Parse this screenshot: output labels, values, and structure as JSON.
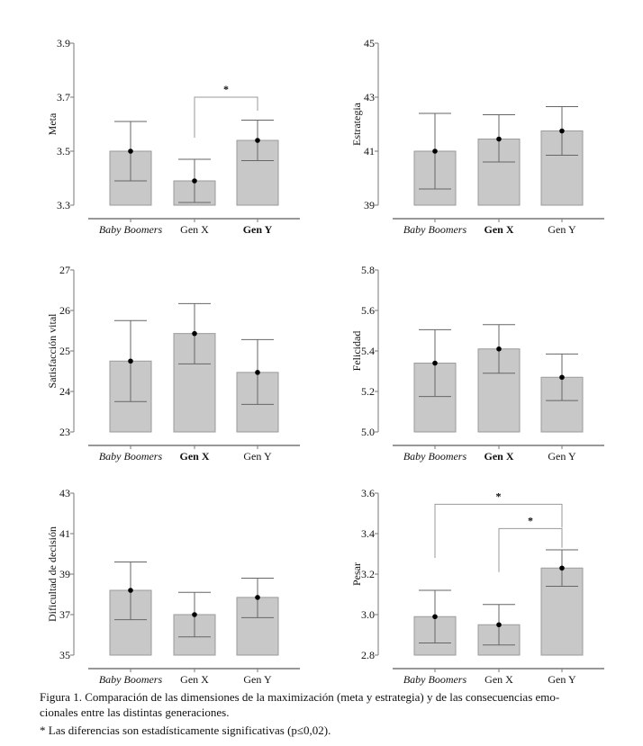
{
  "chart_data": [
    {
      "type": "bar",
      "ylabel": "Meta",
      "categories": [
        "Baby Boomers",
        "Gen X",
        "Gen Y"
      ],
      "values": [
        3.5,
        3.39,
        3.54
      ],
      "error_low": [
        3.39,
        3.31,
        3.465
      ],
      "error_high": [
        3.61,
        3.47,
        3.615
      ],
      "ylim": [
        3.3,
        3.9
      ],
      "yticks": [
        "3.3",
        "3.5",
        "3.7",
        "3.9"
      ],
      "bold_labels": [
        "Gen Y"
      ],
      "significance": [
        {
          "from": "Gen X",
          "to": "Gen Y",
          "level": 3.7,
          "drop_from": 3.55,
          "drop_to": 3.65,
          "label": "*"
        }
      ]
    },
    {
      "type": "bar",
      "ylabel": "Estrategia",
      "categories": [
        "Baby Boomers",
        "Gen X",
        "Gen Y"
      ],
      "values": [
        41.0,
        41.45,
        41.75
      ],
      "error_low": [
        39.6,
        40.6,
        40.85
      ],
      "error_high": [
        42.4,
        42.35,
        42.65
      ],
      "ylim": [
        39,
        45
      ],
      "yticks": [
        "39",
        "41",
        "43",
        "45"
      ],
      "bold_labels": [
        "Gen X"
      ],
      "significance": []
    },
    {
      "type": "bar",
      "ylabel": "Satisfacción vital",
      "categories": [
        "Baby Boomers",
        "Gen X",
        "Gen Y"
      ],
      "values": [
        24.75,
        25.43,
        24.47
      ],
      "error_low": [
        23.75,
        24.68,
        23.68
      ],
      "error_high": [
        25.75,
        26.17,
        25.28
      ],
      "ylim": [
        23,
        27
      ],
      "yticks": [
        "23",
        "24",
        "25",
        "26",
        "27"
      ],
      "bold_labels": [
        "Gen X"
      ],
      "significance": []
    },
    {
      "type": "bar",
      "ylabel": "Felicidad",
      "categories": [
        "Baby Boomers",
        "Gen X",
        "Gen Y"
      ],
      "values": [
        5.34,
        5.41,
        5.27
      ],
      "error_low": [
        5.175,
        5.29,
        5.155
      ],
      "error_high": [
        5.505,
        5.53,
        5.385
      ],
      "ylim": [
        5.0,
        5.8
      ],
      "yticks": [
        "5.0",
        "5.2",
        "5.4",
        "5.6",
        "5.8"
      ],
      "bold_labels": [
        "Gen X"
      ],
      "significance": []
    },
    {
      "type": "bar",
      "ylabel": "Dificultad de decisión",
      "categories": [
        "Baby Boomers",
        "Gen X",
        "Gen Y"
      ],
      "values": [
        38.2,
        37.0,
        37.85
      ],
      "error_low": [
        36.75,
        35.9,
        36.85
      ],
      "error_high": [
        39.6,
        38.1,
        38.8
      ],
      "ylim": [
        35,
        43
      ],
      "yticks": [
        "35",
        "37",
        "39",
        "41",
        "43"
      ],
      "bold_labels": [],
      "significance": []
    },
    {
      "type": "bar",
      "ylabel": "Pesar",
      "categories": [
        "Baby Boomers",
        "Gen X",
        "Gen Y"
      ],
      "values": [
        2.99,
        2.95,
        3.23
      ],
      "error_low": [
        2.86,
        2.85,
        3.14
      ],
      "error_high": [
        3.12,
        3.05,
        3.32
      ],
      "ylim": [
        2.8,
        3.6
      ],
      "yticks": [
        "2.8",
        "3.0",
        "3.2",
        "3.4",
        "3.6"
      ],
      "bold_labels": [],
      "significance": [
        {
          "from": "Baby Boomers",
          "to": "Gen Y",
          "level": 3.545,
          "drop_from": 3.28,
          "drop_to": 3.43,
          "label": "*"
        },
        {
          "from": "Gen X",
          "to": "Gen Y",
          "level": 3.425,
          "drop_from": 3.21,
          "drop_to": 3.33,
          "label": "*"
        }
      ]
    }
  ],
  "colors": {
    "bar_fill": "#c8c8c8",
    "bar_stroke": "#9a9a9a",
    "axis": "#777777",
    "error_bar": "#666666",
    "point": "#000000",
    "bracket": "#999999"
  },
  "caption": {
    "line1": "Figura 1. Comparación de las dimensiones de la maximización (meta y estrategia) y de las consecuencias emo-",
    "line2": "cionales entre las distintas generaciones.",
    "note": "* Las diferencias son estadísticamente significativas (p≤0,02)."
  }
}
